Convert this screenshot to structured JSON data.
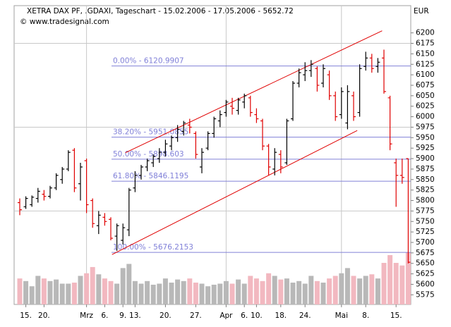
{
  "chart_data": {
    "type": "ohlc",
    "title": "XETRA DAX PF, .GDAXI, Tageschart - 15.02.2006 - 17.05.2006 - 5652.72",
    "subtitle": "© www.tradesignal.com",
    "y_unit": "EUR",
    "categories": [
      null,
      "15.",
      null,
      null,
      "20.",
      null,
      null,
      null,
      null,
      null,
      null,
      "Mrz",
      null,
      null,
      "6.",
      null,
      null,
      "9.",
      null,
      "13.",
      null,
      null,
      null,
      null,
      "20.",
      null,
      null,
      null,
      null,
      "27.",
      null,
      null,
      null,
      null,
      "Apr",
      null,
      null,
      "6.",
      null,
      "10.",
      null,
      null,
      null,
      "18.",
      null,
      null,
      null,
      "24.",
      null,
      null,
      null,
      null,
      null,
      "Mai",
      null,
      null,
      null,
      "8.",
      null,
      null,
      null,
      null,
      "15.",
      null,
      null
    ],
    "open": [
      5795,
      5785,
      5790,
      5805,
      5815,
      5810,
      5830,
      5850,
      5875,
      5920,
      5840,
      5895,
      5800,
      5740,
      5760,
      5755,
      5715,
      5705,
      5730,
      5830,
      5860,
      5880,
      5890,
      5900,
      5915,
      5930,
      5950,
      5965,
      5980,
      5960,
      5880,
      5925,
      5960,
      5990,
      6010,
      6025,
      6015,
      6035,
      6045,
      6005,
      5990,
      5930,
      5875,
      5910,
      5890,
      5995,
      6080,
      6100,
      6110,
      6115,
      6080,
      6100,
      6050,
      6005,
      5985,
      6050,
      6010,
      6120,
      6140,
      6120,
      6140,
      6045,
      5890,
      5860,
      5900
    ],
    "high": [
      5805,
      5810,
      5812,
      5830,
      5825,
      5835,
      5865,
      5880,
      5920,
      5925,
      5890,
      5900,
      5805,
      5775,
      5770,
      5760,
      5745,
      5745,
      5830,
      5870,
      5885,
      5900,
      5910,
      5925,
      5945,
      5955,
      5980,
      5990,
      5995,
      5965,
      5925,
      5965,
      6000,
      6015,
      6040,
      6045,
      6045,
      6055,
      6050,
      6020,
      5995,
      5935,
      5925,
      5920,
      5995,
      6085,
      6115,
      6130,
      6135,
      6120,
      6125,
      6110,
      6060,
      6070,
      6075,
      6060,
      6125,
      6155,
      6150,
      6140,
      6160,
      6050,
      5900,
      5900,
      5900
    ],
    "low": [
      5765,
      5780,
      5785,
      5795,
      5800,
      5805,
      5825,
      5840,
      5870,
      5820,
      5800,
      5770,
      5735,
      5720,
      5740,
      5705,
      5680,
      5695,
      5715,
      5820,
      5850,
      5870,
      5880,
      5890,
      5905,
      5920,
      5940,
      5955,
      5960,
      5900,
      5865,
      5920,
      5950,
      5975,
      6000,
      6005,
      6005,
      6020,
      6000,
      5985,
      5920,
      5860,
      5860,
      5865,
      5885,
      5990,
      6070,
      6085,
      6095,
      6060,
      6070,
      6040,
      5990,
      5995,
      5970,
      5990,
      6000,
      6110,
      6105,
      6105,
      6055,
      5920,
      5785,
      5840,
      5650
    ],
    "close": [
      5778,
      5805,
      5808,
      5822,
      5810,
      5830,
      5860,
      5875,
      5915,
      5830,
      5880,
      5790,
      5745,
      5765,
      5750,
      5710,
      5740,
      5735,
      5825,
      5860,
      5880,
      5895,
      5905,
      5915,
      5935,
      5950,
      5970,
      5985,
      5975,
      5910,
      5915,
      5960,
      5995,
      6005,
      6035,
      6020,
      6040,
      6050,
      6010,
      5995,
      5930,
      5880,
      5915,
      5880,
      5990,
      6080,
      6105,
      6110,
      6125,
      6075,
      6115,
      6050,
      6000,
      6060,
      6060,
      6000,
      6115,
      6140,
      6115,
      6130,
      6060,
      5935,
      5860,
      5855,
      5652.72
    ],
    "volume": [
      50,
      45,
      35,
      55,
      50,
      45,
      48,
      40,
      40,
      42,
      55,
      60,
      72,
      58,
      50,
      45,
      40,
      70,
      78,
      45,
      40,
      45,
      38,
      40,
      50,
      42,
      48,
      45,
      50,
      42,
      40,
      35,
      38,
      40,
      45,
      40,
      48,
      40,
      55,
      50,
      45,
      60,
      55,
      48,
      50,
      42,
      45,
      40,
      55,
      45,
      42,
      50,
      55,
      60,
      70,
      55,
      50,
      55,
      58,
      50,
      80,
      95,
      80,
      75,
      100
    ],
    "vlim": [
      0,
      115
    ],
    "up_color": "#000000",
    "down_color": "#e00000",
    "vol_up_color": "#b8b8b8",
    "vol_down_color": "#f2b8c0",
    "levels": [
      {
        "label": "0.00% - 6120.9907",
        "value": 6120.9907
      },
      {
        "label": "38.20% - 5951.0855",
        "value": 5951.0855
      },
      {
        "label": "50.00% - 5898.603",
        "value": 5898.603
      },
      {
        "label": "61.80% - 5846.1195",
        "value": 5846.1195
      },
      {
        "label": "100.00% - 5676.2153",
        "value": 5676.2153
      }
    ],
    "level_color": "#8080d8",
    "trendlines": [
      {
        "x": [
          17.4,
          59.7
        ],
        "y": [
          5914,
          6205
        ]
      },
      {
        "x": [
          15.2,
          55.6
        ],
        "y": [
          5671,
          5967
        ]
      }
    ],
    "trend_color": "#e00000",
    "ylim": [
      5552,
      6265
    ],
    "yticks": [
      5575,
      5600,
      5625,
      5650,
      5675,
      5700,
      5725,
      5750,
      5775,
      5800,
      5825,
      5850,
      5875,
      5900,
      5925,
      5950,
      5975,
      6000,
      6025,
      6050,
      6075,
      6100,
      6125,
      6150,
      6175,
      6200
    ],
    "ygrid": [
      5775,
      5975,
      6175
    ]
  }
}
